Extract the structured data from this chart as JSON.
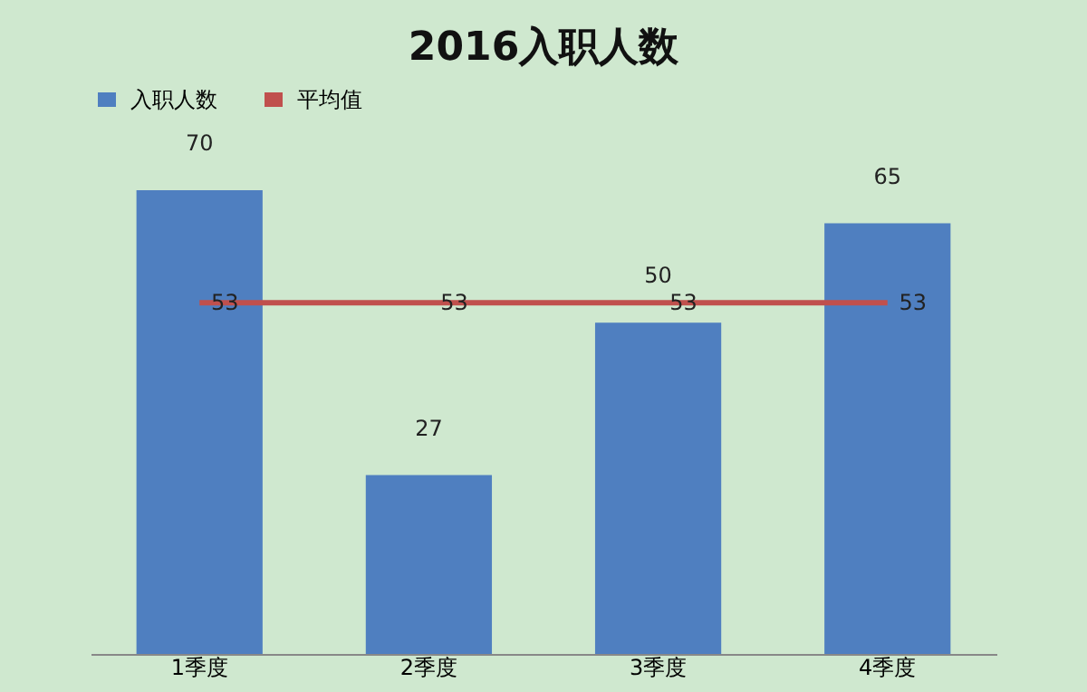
{
  "chart_data": {
    "type": "bar",
    "title": "2016入职人数",
    "categories": [
      "1季度",
      "2季度",
      "3季度",
      "4季度"
    ],
    "series": [
      {
        "name": "入职人数",
        "color": "#4f7fc0",
        "values": [
          70,
          27,
          50,
          65
        ]
      },
      {
        "name": "平均值",
        "type": "line",
        "color": "#c0504d",
        "values": [
          53,
          53,
          53,
          53
        ]
      }
    ],
    "data_labels": true,
    "legend": "top",
    "grid": false
  }
}
